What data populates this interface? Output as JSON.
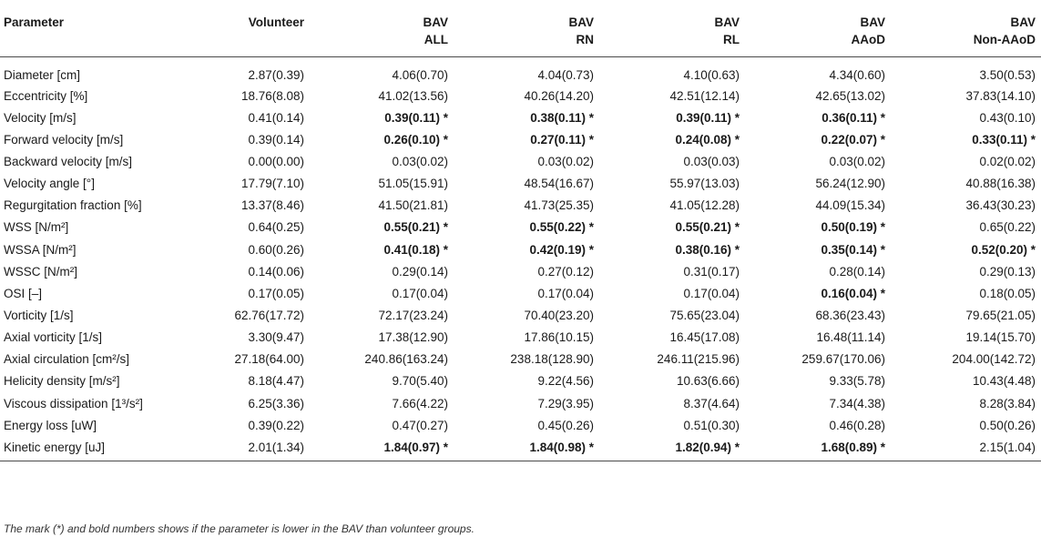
{
  "table": {
    "headers": [
      {
        "line1": "Parameter",
        "line2": ""
      },
      {
        "line1": "Volunteer",
        "line2": ""
      },
      {
        "line1": "BAV",
        "line2": "ALL"
      },
      {
        "line1": "BAV",
        "line2": "RN"
      },
      {
        "line1": "BAV",
        "line2": "RL"
      },
      {
        "line1": "BAV",
        "line2": "AAoD"
      },
      {
        "line1": "BAV",
        "line2": "Non-AAoD"
      }
    ],
    "rows": [
      {
        "param": "Diameter [cm]",
        "cells": [
          {
            "v": "2.87(0.39)",
            "b": false
          },
          {
            "v": "4.06(0.70)",
            "b": false
          },
          {
            "v": "4.04(0.73)",
            "b": false
          },
          {
            "v": "4.10(0.63)",
            "b": false
          },
          {
            "v": "4.34(0.60)",
            "b": false
          },
          {
            "v": "3.50(0.53)",
            "b": false
          }
        ]
      },
      {
        "param": "Eccentricity [%]",
        "cells": [
          {
            "v": "18.76(8.08)",
            "b": false
          },
          {
            "v": "41.02(13.56)",
            "b": false
          },
          {
            "v": "40.26(14.20)",
            "b": false
          },
          {
            "v": "42.51(12.14)",
            "b": false
          },
          {
            "v": "42.65(13.02)",
            "b": false
          },
          {
            "v": "37.83(14.10)",
            "b": false
          }
        ]
      },
      {
        "param": "Velocity [m/s]",
        "cells": [
          {
            "v": "0.41(0.14)",
            "b": false
          },
          {
            "v": "0.39(0.11) *",
            "b": true
          },
          {
            "v": "0.38(0.11) *",
            "b": true
          },
          {
            "v": "0.39(0.11) *",
            "b": true
          },
          {
            "v": "0.36(0.11) *",
            "b": true
          },
          {
            "v": "0.43(0.10)",
            "b": false
          }
        ]
      },
      {
        "param": "Forward velocity [m/s]",
        "cells": [
          {
            "v": "0.39(0.14)",
            "b": false
          },
          {
            "v": "0.26(0.10) *",
            "b": true
          },
          {
            "v": "0.27(0.11) *",
            "b": true
          },
          {
            "v": "0.24(0.08) *",
            "b": true
          },
          {
            "v": "0.22(0.07) *",
            "b": true
          },
          {
            "v": "0.33(0.11) *",
            "b": true
          }
        ]
      },
      {
        "param": "Backward velocity [m/s]",
        "cells": [
          {
            "v": "0.00(0.00)",
            "b": false
          },
          {
            "v": "0.03(0.02)",
            "b": false
          },
          {
            "v": "0.03(0.02)",
            "b": false
          },
          {
            "v": "0.03(0.03)",
            "b": false
          },
          {
            "v": "0.03(0.02)",
            "b": false
          },
          {
            "v": "0.02(0.02)",
            "b": false
          }
        ]
      },
      {
        "param": "Velocity angle [°]",
        "cells": [
          {
            "v": "17.79(7.10)",
            "b": false
          },
          {
            "v": "51.05(15.91)",
            "b": false
          },
          {
            "v": "48.54(16.67)",
            "b": false
          },
          {
            "v": "55.97(13.03)",
            "b": false
          },
          {
            "v": "56.24(12.90)",
            "b": false
          },
          {
            "v": "40.88(16.38)",
            "b": false
          }
        ]
      },
      {
        "param": "Regurgitation fraction [%]",
        "cells": [
          {
            "v": "13.37(8.46)",
            "b": false
          },
          {
            "v": "41.50(21.81)",
            "b": false
          },
          {
            "v": "41.73(25.35)",
            "b": false
          },
          {
            "v": "41.05(12.28)",
            "b": false
          },
          {
            "v": "44.09(15.34)",
            "b": false
          },
          {
            "v": "36.43(30.23)",
            "b": false
          }
        ]
      },
      {
        "param": "WSS [N/m²]",
        "cells": [
          {
            "v": "0.64(0.25)",
            "b": false
          },
          {
            "v": "0.55(0.21) *",
            "b": true
          },
          {
            "v": "0.55(0.22) *",
            "b": true
          },
          {
            "v": "0.55(0.21) *",
            "b": true
          },
          {
            "v": "0.50(0.19) *",
            "b": true
          },
          {
            "v": "0.65(0.22)",
            "b": false
          }
        ]
      },
      {
        "param": "WSSA [N/m²]",
        "cells": [
          {
            "v": "0.60(0.26)",
            "b": false
          },
          {
            "v": "0.41(0.18) *",
            "b": true
          },
          {
            "v": "0.42(0.19) *",
            "b": true
          },
          {
            "v": "0.38(0.16) *",
            "b": true
          },
          {
            "v": "0.35(0.14) *",
            "b": true
          },
          {
            "v": "0.52(0.20) *",
            "b": true
          }
        ]
      },
      {
        "param": "WSSC [N/m²]",
        "cells": [
          {
            "v": "0.14(0.06)",
            "b": false
          },
          {
            "v": "0.29(0.14)",
            "b": false
          },
          {
            "v": "0.27(0.12)",
            "b": false
          },
          {
            "v": "0.31(0.17)",
            "b": false
          },
          {
            "v": "0.28(0.14)",
            "b": false
          },
          {
            "v": "0.29(0.13)",
            "b": false
          }
        ]
      },
      {
        "param": "OSI [–]",
        "cells": [
          {
            "v": "0.17(0.05)",
            "b": false
          },
          {
            "v": "0.17(0.04)",
            "b": false
          },
          {
            "v": "0.17(0.04)",
            "b": false
          },
          {
            "v": "0.17(0.04)",
            "b": false
          },
          {
            "v": "0.16(0.04) *",
            "b": true
          },
          {
            "v": "0.18(0.05)",
            "b": false
          }
        ]
      },
      {
        "param": "Vorticity [1/s]",
        "cells": [
          {
            "v": "62.76(17.72)",
            "b": false
          },
          {
            "v": "72.17(23.24)",
            "b": false
          },
          {
            "v": "70.40(23.20)",
            "b": false
          },
          {
            "v": "75.65(23.04)",
            "b": false
          },
          {
            "v": "68.36(23.43)",
            "b": false
          },
          {
            "v": "79.65(21.05)",
            "b": false
          }
        ]
      },
      {
        "param": "Axial vorticity [1/s]",
        "cells": [
          {
            "v": "3.30(9.47)",
            "b": false
          },
          {
            "v": "17.38(12.90)",
            "b": false
          },
          {
            "v": "17.86(10.15)",
            "b": false
          },
          {
            "v": "16.45(17.08)",
            "b": false
          },
          {
            "v": "16.48(11.14)",
            "b": false
          },
          {
            "v": "19.14(15.70)",
            "b": false
          }
        ]
      },
      {
        "param": "Axial circulation [cm²/s]",
        "cells": [
          {
            "v": "27.18(64.00)",
            "b": false
          },
          {
            "v": "240.86(163.24)",
            "b": false
          },
          {
            "v": "238.18(128.90)",
            "b": false
          },
          {
            "v": "246.11(215.96)",
            "b": false
          },
          {
            "v": "259.67(170.06)",
            "b": false
          },
          {
            "v": "204.00(142.72)",
            "b": false
          }
        ]
      },
      {
        "param": "Helicity density [m/s²]",
        "cells": [
          {
            "v": "8.18(4.47)",
            "b": false
          },
          {
            "v": "9.70(5.40)",
            "b": false
          },
          {
            "v": "9.22(4.56)",
            "b": false
          },
          {
            "v": "10.63(6.66)",
            "b": false
          },
          {
            "v": "9.33(5.78)",
            "b": false
          },
          {
            "v": "10.43(4.48)",
            "b": false
          }
        ]
      },
      {
        "param": "Viscous dissipation [1³/s²]",
        "cells": [
          {
            "v": "6.25(3.36)",
            "b": false
          },
          {
            "v": "7.66(4.22)",
            "b": false
          },
          {
            "v": "7.29(3.95)",
            "b": false
          },
          {
            "v": "8.37(4.64)",
            "b": false
          },
          {
            "v": "7.34(4.38)",
            "b": false
          },
          {
            "v": "8.28(3.84)",
            "b": false
          }
        ]
      },
      {
        "param": "Energy loss [uW]",
        "cells": [
          {
            "v": "0.39(0.22)",
            "b": false
          },
          {
            "v": "0.47(0.27)",
            "b": false
          },
          {
            "v": "0.45(0.26)",
            "b": false
          },
          {
            "v": "0.51(0.30)",
            "b": false
          },
          {
            "v": "0.46(0.28)",
            "b": false
          },
          {
            "v": "0.50(0.26)",
            "b": false
          }
        ]
      },
      {
        "param": "Kinetic energy [uJ]",
        "cells": [
          {
            "v": "2.01(1.34)",
            "b": false
          },
          {
            "v": "1.84(0.97) *",
            "b": true
          },
          {
            "v": "1.84(0.98) *",
            "b": true
          },
          {
            "v": "1.82(0.94) *",
            "b": true
          },
          {
            "v": "1.68(0.89) *",
            "b": true
          },
          {
            "v": "2.15(1.04)",
            "b": false
          }
        ]
      }
    ]
  },
  "footnote": "The mark (*) and bold numbers shows if the parameter is lower in the BAV than volunteer groups."
}
